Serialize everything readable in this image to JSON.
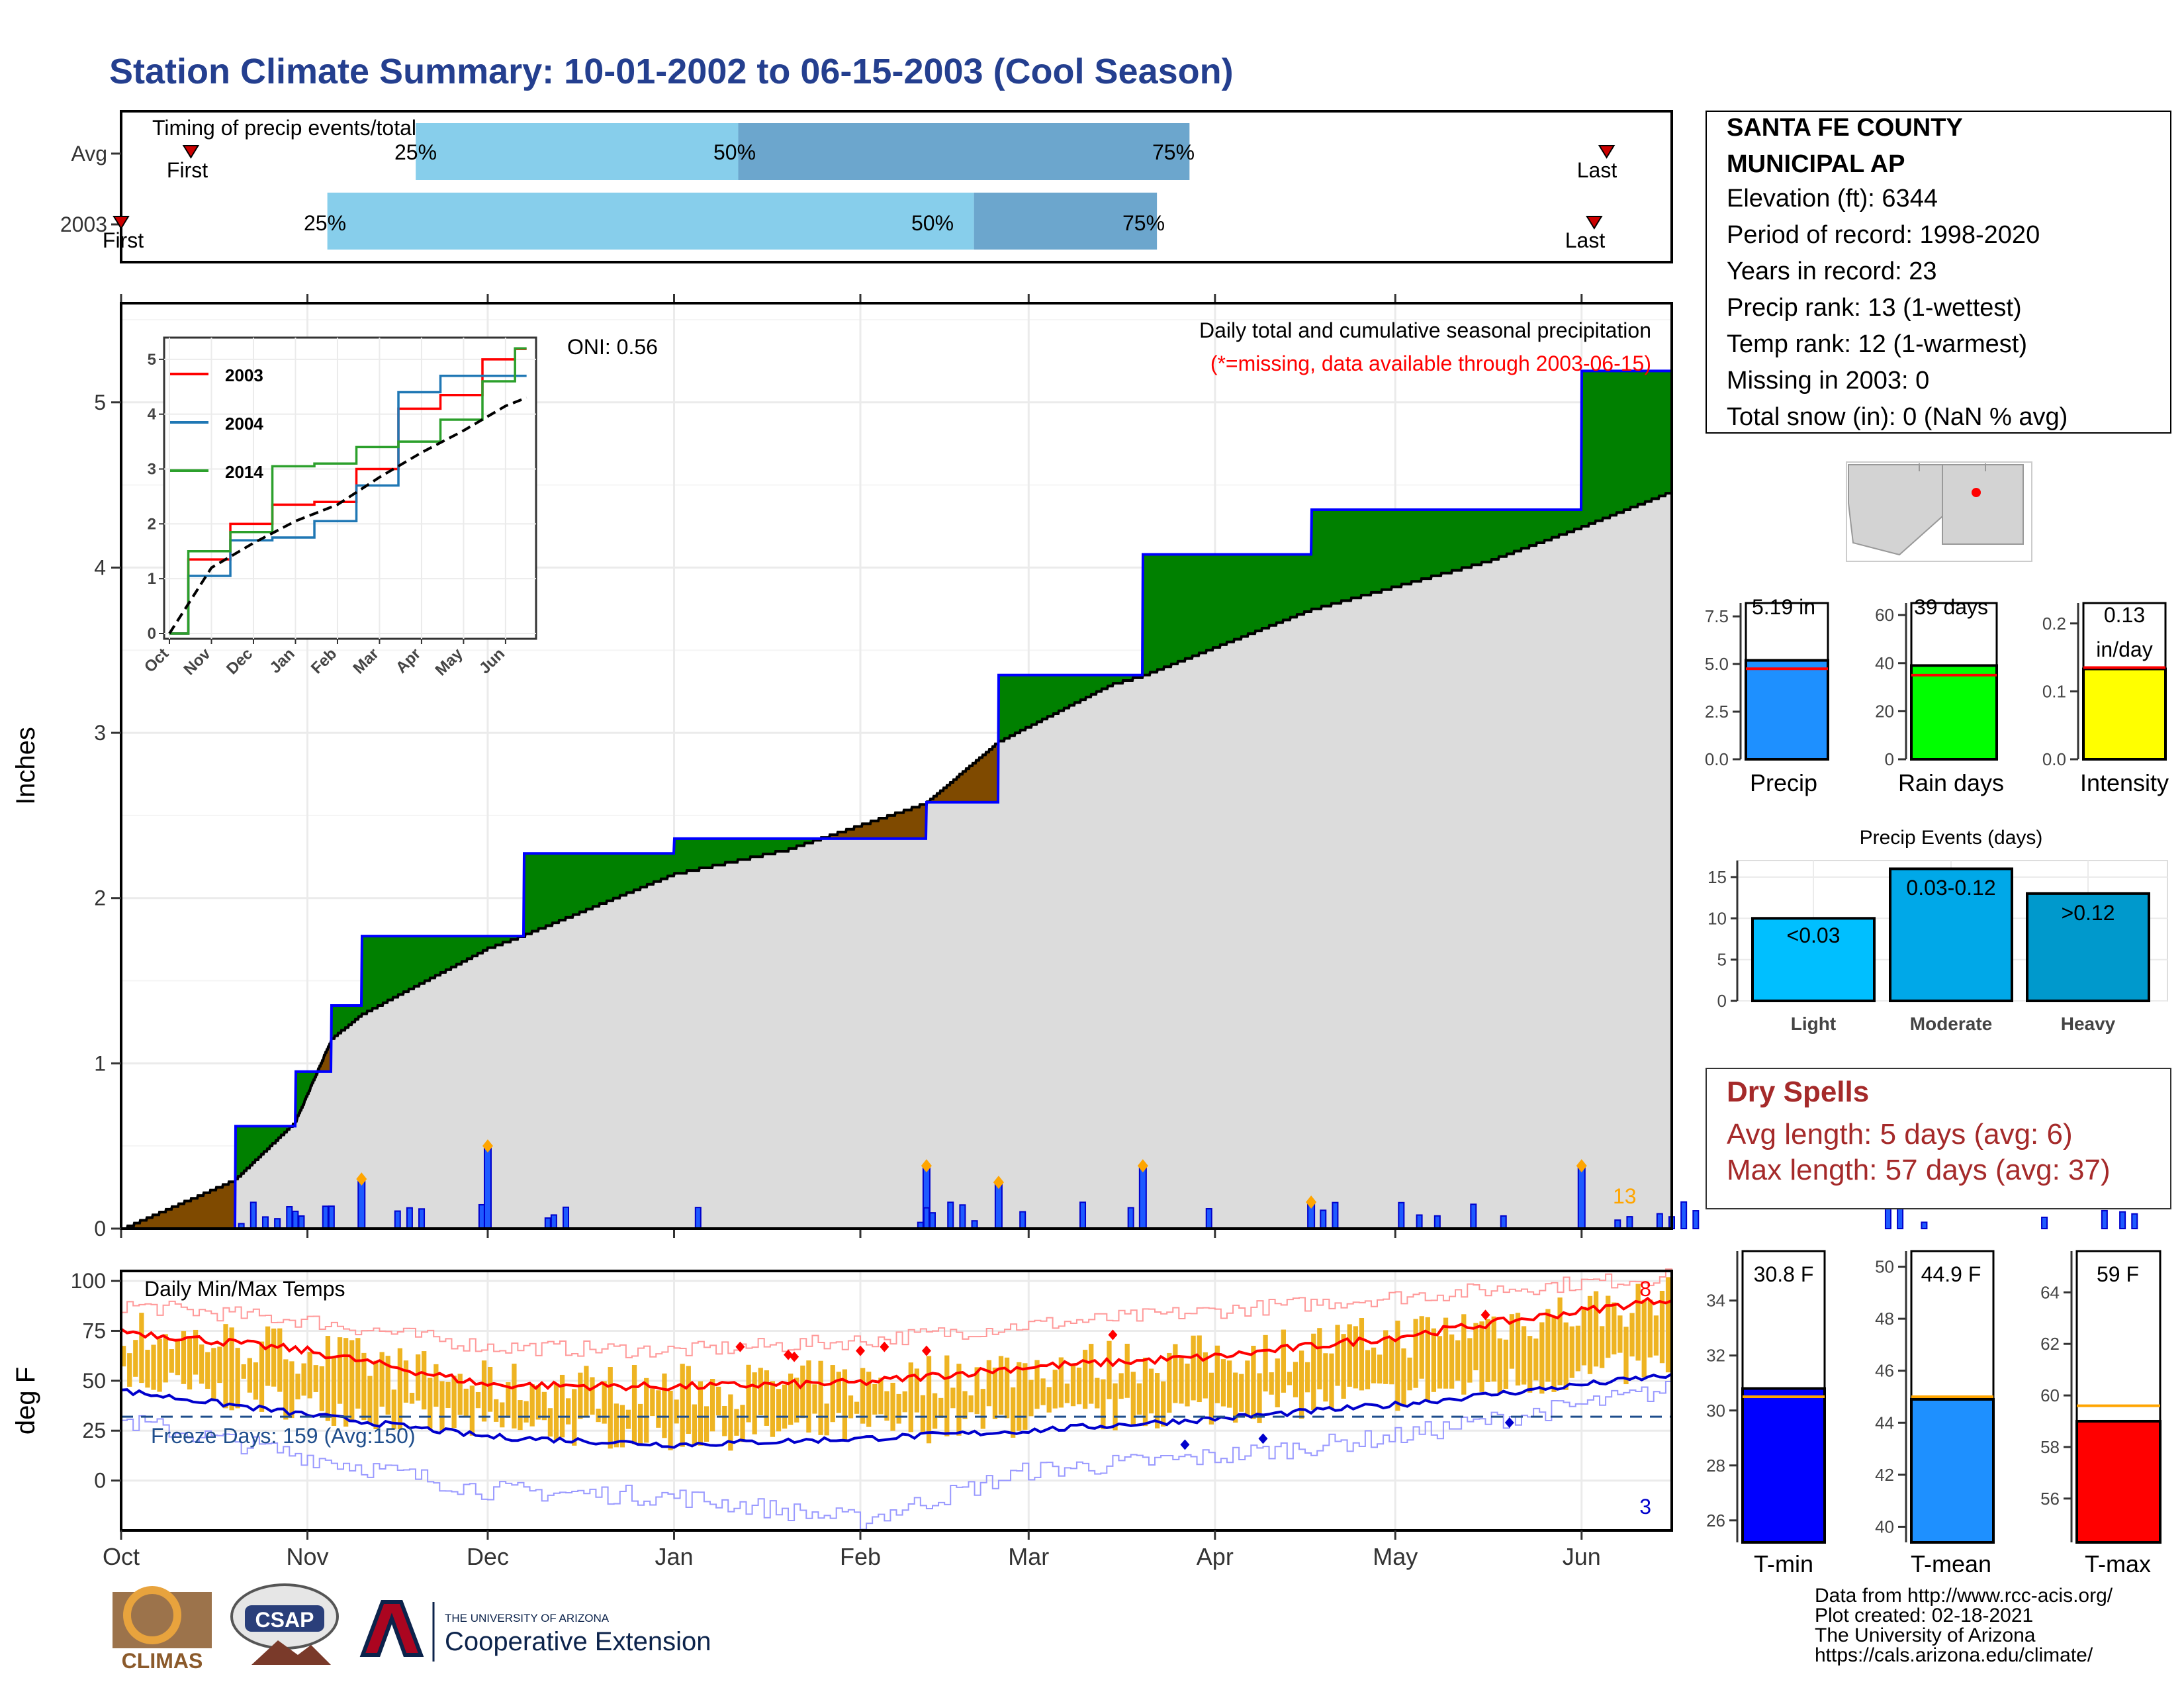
{
  "page_title": "Station Climate Summary: 10-01-2002 to 06-15-2003 (Cool Season)",
  "timing_panel": {
    "title": "Timing of precip events/totals",
    "rows": [
      {
        "label": "Avg",
        "first_label": "First",
        "last_label": "Last",
        "first": 0.045,
        "p25": 0.19,
        "p50": 0.398,
        "p75": 0.689,
        "last": 0.958
      },
      {
        "label": "2003",
        "first_label": "First",
        "last_label": "Last",
        "first": 0.0,
        "p25": 0.133,
        "p50": 0.55,
        "p75": 0.668,
        "last": 0.95
      }
    ],
    "pct_labels": [
      "25%",
      "50%",
      "75%"
    ]
  },
  "station_info": {
    "name_line1": "SANTA FE COUNTY",
    "name_line2": "MUNICIPAL AP",
    "lines": [
      "Elevation (ft): 6344",
      "Period of record: 1998-2020",
      "Years in record: 23",
      "Precip rank: 13 (1-wettest)",
      "Temp rank: 12 (1-warmest)",
      "Missing in 2003: 0",
      "Total snow (in): 0 (NaN % avg)"
    ]
  },
  "main_panel": {
    "ylabel": "Inches",
    "oni": "ONI: 0.56",
    "note1": "Daily total and cumulative seasonal precipitation",
    "note2": "(*=missing, data available through 2003-06-15)",
    "rank_label": "13",
    "yticks": [
      "0",
      "1",
      "2",
      "3",
      "4",
      "5"
    ]
  },
  "temp_panel": {
    "ylabel": "deg F",
    "title": "Daily Min/Max Temps",
    "freeze": "Freeze Days: 159 (Avg:150)",
    "max_count": "8",
    "min_count": "3",
    "yticks": [
      "0",
      "25",
      "50",
      "75",
      "100"
    ]
  },
  "month_labels": [
    "Oct",
    "Nov",
    "Dec",
    "Jan",
    "Feb",
    "Mar",
    "Apr",
    "May",
    "Jun"
  ],
  "bar_summaries": {
    "precip": {
      "label": "Precip",
      "value_label": "5.19 in",
      "value": 5.19,
      "avg": 4.75,
      "yticks": [
        "0.0",
        "2.5",
        "5.0",
        "7.5"
      ],
      "color": "#1E90FF"
    },
    "raindays": {
      "label": "Rain days",
      "value_label": "39 days",
      "value": 39,
      "avg": 35,
      "yticks": [
        "0",
        "20",
        "40",
        "60"
      ],
      "color": "#00FF00"
    },
    "intensity": {
      "label": "Intensity",
      "value_label_1": "0.13",
      "value_label_2": "in/day",
      "value": 0.133,
      "avg": 0.135,
      "yticks": [
        "0.0",
        "0.1",
        "0.2"
      ],
      "color": "#FFFF00"
    }
  },
  "precip_events": {
    "title": "Precip Events (days)",
    "yticks": [
      "0",
      "5",
      "10",
      "15"
    ],
    "bars": [
      {
        "label": "Light",
        "bar_label": "<0.03",
        "value": 10,
        "color": "#00BFFF"
      },
      {
        "label": "Moderate",
        "bar_label": "0.03-0.12",
        "value": 16,
        "color": "#00A8E8"
      },
      {
        "label": "Heavy",
        "bar_label": ">0.12",
        "value": 13,
        "color": "#0099CC"
      }
    ]
  },
  "dry_spells": {
    "title": "Dry Spells",
    "line1": "Avg length: 5 days (avg: 6)",
    "line2": "Max length: 57 days (avg: 37)"
  },
  "temp_summaries": {
    "tmin": {
      "label": "T-min",
      "value_label": "30.8 F",
      "value": 30.8,
      "avg": 30.5,
      "yticks": [
        "26",
        "28",
        "30",
        "32",
        "34"
      ],
      "color": "#0000FF"
    },
    "tmean": {
      "label": "T-mean",
      "value_label": "44.9 F",
      "value": 44.9,
      "avg": 45.0,
      "yticks": [
        "40",
        "42",
        "44",
        "46",
        "48",
        "50"
      ],
      "color": "#1E90FF"
    },
    "tmax": {
      "label": "T-max",
      "value_label": "59 F",
      "value": 59.0,
      "avg": 59.6,
      "yticks": [
        "56",
        "58",
        "60",
        "62",
        "64"
      ],
      "color": "#FF0000"
    }
  },
  "footer": {
    "lines": [
      "Data from http://www.rcc-acis.org/",
      "Plot created: 02-18-2021",
      "The University of Arizona",
      "https://cals.arizona.edu/climate/"
    ],
    "climas": "CLIMAS",
    "csap": "CSAP",
    "ua_small": "THE UNIVERSITY OF ARIZONA",
    "ua_big": "Cooperative Extension"
  },
  "chart_data": [
    {
      "type": "area",
      "title": "Daily total and cumulative seasonal precipitation",
      "ylabel": "Inches",
      "ylim": [
        0,
        5.6
      ],
      "x_dates": [
        "2002-10-01",
        "2002-10-20",
        "2002-10-30",
        "2002-11-05",
        "2002-11-10",
        "2002-12-01",
        "2002-12-07",
        "2003-01-01",
        "2003-01-20",
        "2003-02-12",
        "2003-02-24",
        "2003-03-15",
        "2003-03-20",
        "2003-04-17",
        "2003-05-17",
        "2003-06-01",
        "2003-06-15"
      ],
      "series": [
        {
          "name": "2003",
          "values": [
            0.0,
            0.62,
            0.95,
            1.35,
            1.77,
            1.77,
            2.27,
            2.36,
            2.36,
            2.58,
            3.35,
            3.35,
            4.08,
            4.35,
            4.35,
            5.19,
            5.19
          ]
        },
        {
          "name": "Avg",
          "values": [
            0.0,
            0.3,
            0.65,
            1.15,
            1.3,
            1.7,
            1.78,
            2.15,
            2.3,
            2.58,
            2.95,
            3.3,
            3.35,
            3.75,
            4.05,
            4.25,
            4.45
          ]
        }
      ],
      "daily_events": [
        {
          "date": "2002-11-10",
          "value": 0.3
        },
        {
          "date": "2002-12-01",
          "value": 0.5
        },
        {
          "date": "2003-02-12",
          "value": 0.38
        },
        {
          "date": "2003-02-24",
          "value": 0.28
        },
        {
          "date": "2003-03-20",
          "value": 0.38
        },
        {
          "date": "2003-04-17",
          "value": 0.16
        },
        {
          "date": "2003-06-01",
          "value": 0.38
        }
      ]
    },
    {
      "type": "line",
      "title": "",
      "xlabel": "",
      "ylabel": "",
      "yticks": [
        0,
        1,
        2,
        3,
        4,
        5
      ],
      "xticks": [
        "Oct",
        "Nov",
        "Dec",
        "Jan",
        "Feb",
        "Mar",
        "Apr",
        "May",
        "Jun"
      ],
      "ylim": [
        0,
        5.3
      ],
      "x": [
        0,
        1,
        2,
        3,
        4,
        5,
        6,
        7,
        8,
        8.5
      ],
      "series": [
        {
          "name": "2003",
          "values": [
            0,
            1.35,
            2.0,
            2.35,
            2.4,
            3.0,
            4.1,
            4.35,
            5.0,
            5.19
          ]
        },
        {
          "name": "2004",
          "values": [
            0,
            1.05,
            1.7,
            1.75,
            2.05,
            2.7,
            4.4,
            4.7,
            4.7,
            4.7
          ]
        },
        {
          "name": "2014",
          "values": [
            0,
            1.5,
            1.85,
            3.05,
            3.1,
            3.4,
            3.5,
            3.9,
            4.6,
            5.2
          ]
        },
        {
          "name": "Avg",
          "values": [
            0,
            1.2,
            1.65,
            2.05,
            2.35,
            2.85,
            3.3,
            3.7,
            4.15,
            4.3
          ]
        }
      ]
    },
    {
      "type": "line",
      "title": "Daily Min/Max Temps",
      "ylabel": "deg F",
      "ylim": [
        -25,
        105
      ],
      "x": [
        "Oct",
        "Nov",
        "Dec",
        "Jan",
        "Feb",
        "Mar",
        "Apr",
        "May",
        "Jun"
      ],
      "series": [
        {
          "name": "Avg max",
          "values": [
            75,
            65,
            48,
            47,
            49,
            57,
            62,
            72,
            85
          ]
        },
        {
          "name": "Avg min",
          "values": [
            45,
            33,
            22,
            18,
            21,
            25,
            31,
            38,
            48
          ]
        },
        {
          "name": "Record max",
          "values": [
            88,
            80,
            67,
            65,
            70,
            78,
            85,
            92,
            99
          ]
        },
        {
          "name": "Record min",
          "values": [
            30,
            12,
            -5,
            -8,
            -20,
            5,
            12,
            22,
            38
          ]
        }
      ],
      "freeze_line": 32
    }
  ]
}
